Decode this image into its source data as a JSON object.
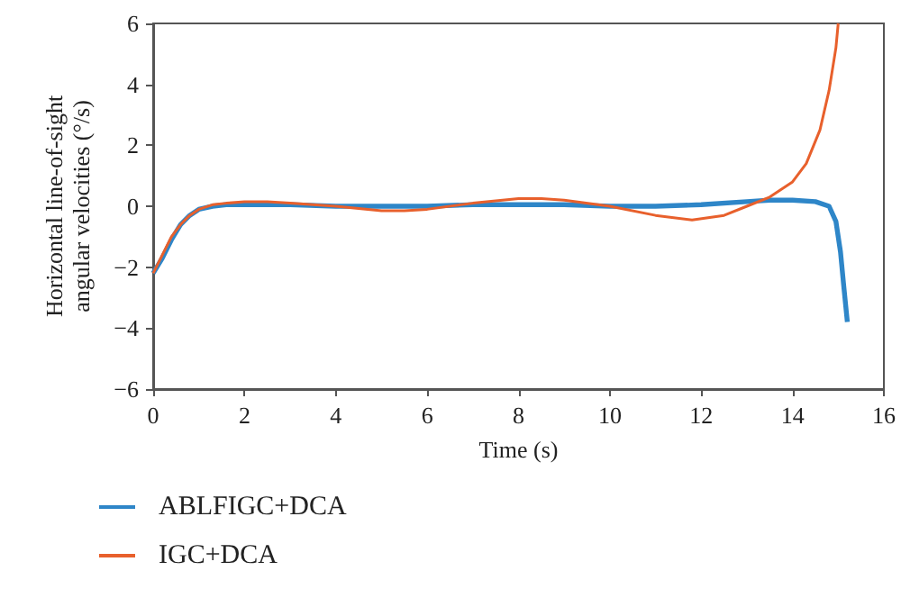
{
  "chart_data": {
    "type": "line",
    "xlabel": "Time (s)",
    "ylabel": "Horizontal line-of-sight\nangular velocities (°/s)",
    "xlim": [
      0,
      16
    ],
    "xticks": [
      0,
      2,
      4,
      6,
      8,
      10,
      12,
      14,
      16
    ],
    "ylim": [
      -6,
      6
    ],
    "yticks": [
      -6,
      -4,
      -2,
      0,
      2,
      4,
      6
    ],
    "grid": false,
    "legend": "bottom left",
    "marker": "none",
    "line_style": "solid",
    "series": [
      {
        "name": "ABLFIGC+DCA",
        "color": "#2e86c8",
        "x": [
          0,
          0.2,
          0.4,
          0.6,
          0.8,
          1.0,
          1.3,
          1.6,
          2,
          3,
          4,
          5,
          6,
          7,
          8,
          9,
          10,
          11,
          12,
          13,
          13.5,
          14,
          14.5,
          14.8,
          14.95,
          15.05,
          15.12,
          15.2
        ],
        "values": [
          -2.2,
          -1.7,
          -1.1,
          -0.6,
          -0.3,
          -0.1,
          0.0,
          0.05,
          0.05,
          0.05,
          0.0,
          0.0,
          0.0,
          0.05,
          0.05,
          0.05,
          0.0,
          0.0,
          0.05,
          0.15,
          0.2,
          0.2,
          0.15,
          0.0,
          -0.5,
          -1.5,
          -2.6,
          -3.8
        ]
      },
      {
        "name": "IGC+DCA",
        "color": "#e8602c",
        "x": [
          0,
          0.2,
          0.4,
          0.6,
          0.8,
          1.0,
          1.3,
          1.6,
          2,
          2.5,
          3,
          4,
          5,
          5.5,
          6,
          7,
          8,
          8.5,
          9,
          10,
          11,
          11.8,
          12.5,
          13,
          13.5,
          14,
          14.3,
          14.6,
          14.8,
          14.95,
          15.0
        ],
        "values": [
          -2.2,
          -1.6,
          -1.0,
          -0.6,
          -0.3,
          -0.1,
          0.05,
          0.1,
          0.15,
          0.15,
          0.1,
          0.0,
          -0.15,
          -0.15,
          -0.1,
          0.1,
          0.25,
          0.25,
          0.2,
          0.0,
          -0.3,
          -0.45,
          -0.3,
          0.0,
          0.3,
          0.8,
          1.4,
          2.5,
          3.8,
          5.2,
          6.0
        ]
      }
    ]
  }
}
